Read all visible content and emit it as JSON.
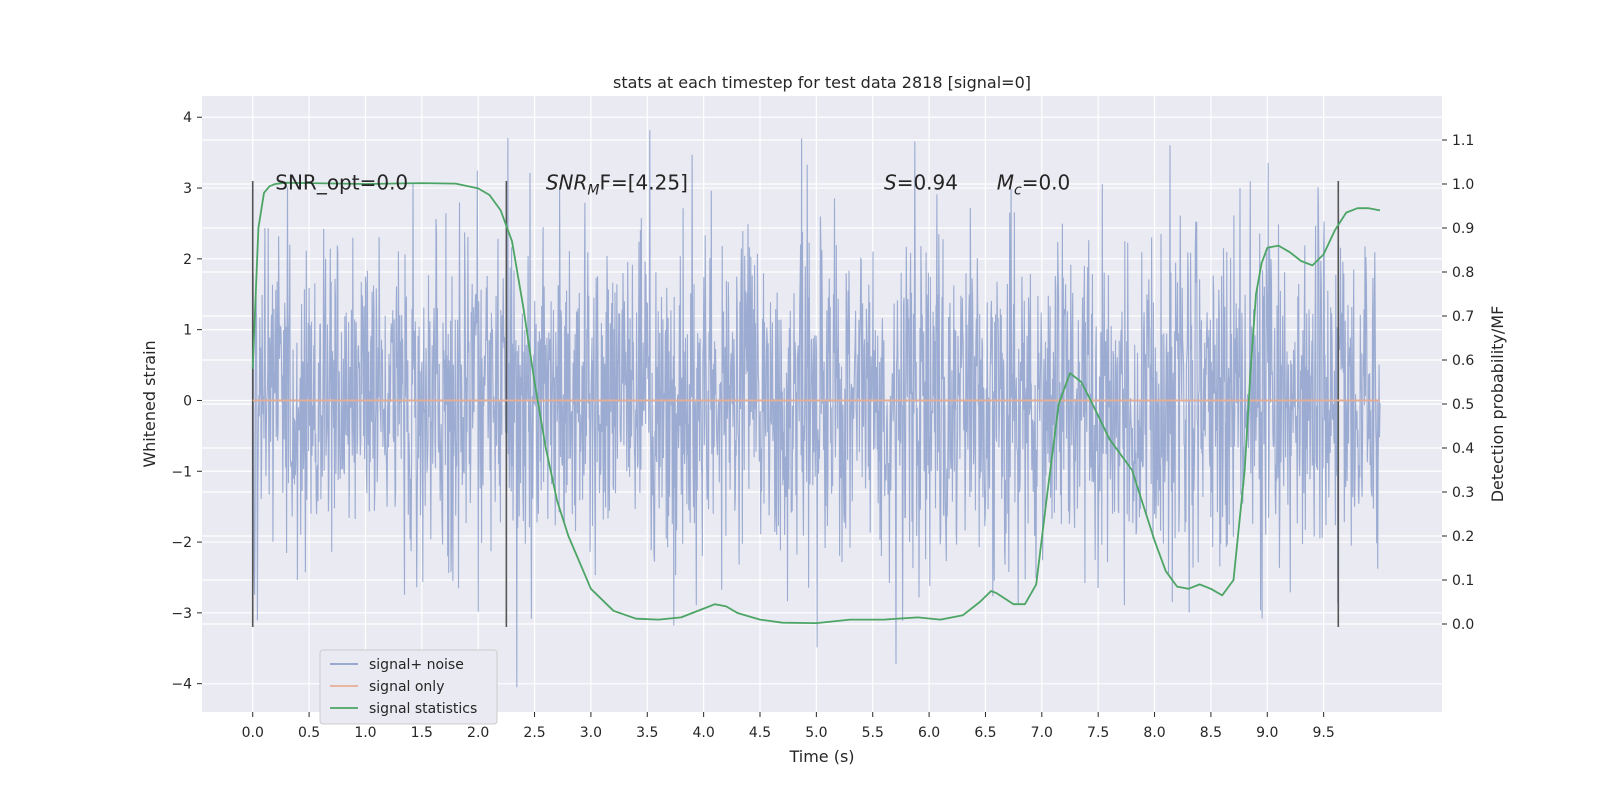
{
  "chart_data": {
    "type": "line",
    "title": "stats at each timestep for test data 2818 [signal=0]",
    "xlabel": "Time (s)",
    "ylabel": "Whitened strain",
    "ylabel_right": "Detection probability/MF",
    "xlim": [
      -0.45,
      10.55
    ],
    "ylim": [
      -4.4,
      4.3
    ],
    "ylim_right": [
      -0.2,
      1.2
    ],
    "x_ticks": [
      "0.0",
      "0.5",
      "1.0",
      "1.5",
      "2.0",
      "2.5",
      "3.0",
      "3.5",
      "4.0",
      "4.5",
      "5.0",
      "5.5",
      "6.0",
      "6.5",
      "7.0",
      "7.5",
      "8.0",
      "8.5",
      "9.0",
      "9.5"
    ],
    "y_ticks": [
      "4",
      "3",
      "2",
      "1",
      "0",
      "−1",
      "−2",
      "−3",
      "−4"
    ],
    "y_right_ticks": [
      "1.1",
      "1.0",
      "0.9",
      "0.8",
      "0.7",
      "0.6",
      "0.5",
      "0.4",
      "0.3",
      "0.2",
      "0.1",
      "0.0"
    ],
    "grid": true,
    "legend_position": "lower-left",
    "colors": {
      "background": "#eaeaf2",
      "noise": "#8da0cb",
      "signal_only": "#e5ae94",
      "statistics": "#4ca565",
      "marker_lines": "#555555"
    },
    "annotations": [
      {
        "id": "snr_opt",
        "prefix": "SNR_opt=0.0",
        "x": 0.2
      },
      {
        "id": "snr_mf",
        "prefix": "SNR",
        "sub": "M",
        "suffix": "F=[4.25]",
        "x": 2.6
      },
      {
        "id": "s_val",
        "prefix": "S",
        "suffix": "=0.94",
        "x": 5.6
      },
      {
        "id": "mc_val",
        "prefix": "M",
        "sub": "c",
        "suffix": "=0.0",
        "x": 6.6
      }
    ],
    "annotation_y": 3.05,
    "vertical_markers": [
      0.0,
      2.25,
      9.63
    ],
    "vertical_marker_range": [
      -3.2,
      3.1
    ],
    "series": [
      {
        "name": "signal+ noise",
        "kind": "noise",
        "x_range": [
          0,
          10
        ],
        "typical_amplitude": 1.2,
        "peak_min": -4.05,
        "peak_max": 3.95
      },
      {
        "name": "signal only",
        "kind": "flat",
        "x": [
          0,
          10
        ],
        "y": [
          0,
          0
        ]
      },
      {
        "name": "signal statistics",
        "kind": "line",
        "axis": "right",
        "x": [
          0.0,
          0.05,
          0.1,
          0.15,
          0.2,
          0.3,
          0.5,
          1.0,
          1.5,
          1.8,
          2.0,
          2.1,
          2.2,
          2.3,
          2.4,
          2.5,
          2.6,
          2.7,
          2.8,
          3.0,
          3.2,
          3.4,
          3.6,
          3.8,
          4.0,
          4.1,
          4.2,
          4.3,
          4.5,
          4.7,
          5.0,
          5.3,
          5.6,
          5.9,
          6.1,
          6.3,
          6.45,
          6.55,
          6.6,
          6.75,
          6.85,
          6.95,
          7.05,
          7.15,
          7.25,
          7.35,
          7.45,
          7.6,
          7.8,
          8.0,
          8.1,
          8.2,
          8.3,
          8.4,
          8.5,
          8.6,
          8.7,
          8.8,
          8.85,
          8.9,
          8.95,
          9.0,
          9.1,
          9.2,
          9.3,
          9.4,
          9.5,
          9.6,
          9.7,
          9.8,
          9.9,
          10.0
        ],
        "y": [
          0.58,
          0.9,
          0.98,
          0.995,
          1.0,
          1.003,
          1.002,
          1.0,
          1.002,
          1.001,
          0.99,
          0.975,
          0.94,
          0.87,
          0.72,
          0.55,
          0.4,
          0.28,
          0.2,
          0.08,
          0.03,
          0.012,
          0.01,
          0.015,
          0.035,
          0.045,
          0.04,
          0.025,
          0.01,
          0.003,
          0.002,
          0.01,
          0.01,
          0.015,
          0.01,
          0.02,
          0.05,
          0.075,
          0.07,
          0.045,
          0.045,
          0.09,
          0.3,
          0.5,
          0.57,
          0.55,
          0.5,
          0.42,
          0.35,
          0.19,
          0.12,
          0.085,
          0.08,
          0.09,
          0.08,
          0.065,
          0.1,
          0.35,
          0.57,
          0.75,
          0.82,
          0.855,
          0.86,
          0.845,
          0.825,
          0.815,
          0.84,
          0.895,
          0.935,
          0.945,
          0.945,
          0.94
        ]
      }
    ]
  }
}
